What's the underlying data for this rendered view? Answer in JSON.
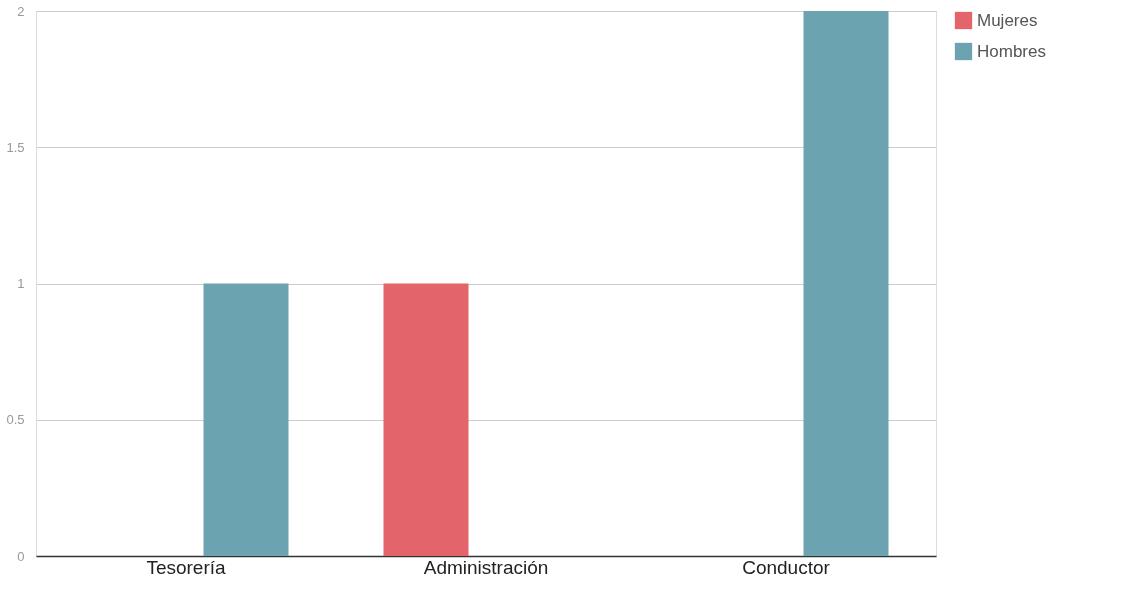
{
  "chart_data": {
    "type": "bar",
    "categories": [
      "Tesorería",
      "Administración",
      "Conductor"
    ],
    "series": [
      {
        "name": "Mujeres",
        "color": "#e3646a",
        "values": [
          null,
          1,
          null
        ]
      },
      {
        "name": "Hombres",
        "color": "#6ba3b1",
        "values": [
          1,
          null,
          2
        ]
      }
    ],
    "ylim": [
      0,
      2
    ],
    "yticks": [
      0,
      0.5,
      1,
      1.5,
      2
    ],
    "grid": "y",
    "legend": "top right"
  }
}
